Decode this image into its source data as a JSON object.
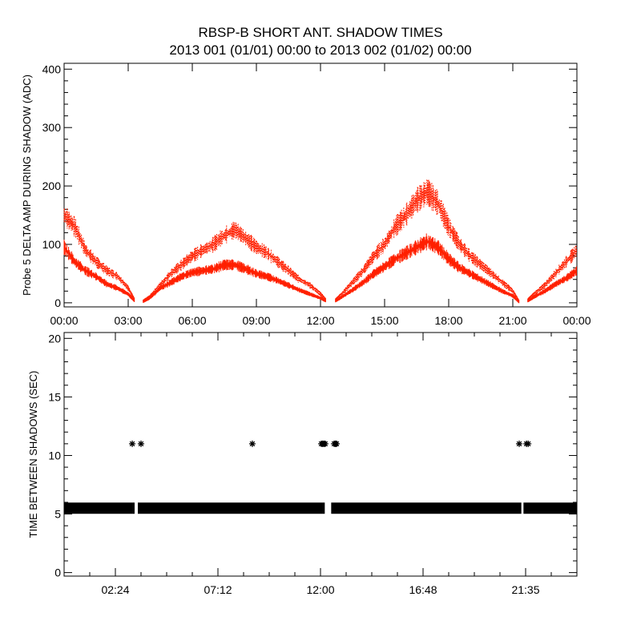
{
  "title": "RBSP-B SHORT ANT. SHADOW TIMES",
  "subtitle": "2013 001 (01/01) 00:00 to 2013 002 (01/02) 00:00",
  "chart_data": [
    {
      "type": "scatter",
      "ylabel": "Probe 5 DELTA AMP DURING SHADOW (ADC)",
      "xlabel": "",
      "x_unit": "hours",
      "xlim": [
        0,
        24
      ],
      "ylim": [
        -7,
        410
      ],
      "xticks": [
        0,
        3,
        6,
        9,
        12,
        15,
        18,
        21,
        24
      ],
      "xtick_labels": [
        "00:00",
        "03:00",
        "06:00",
        "09:00",
        "12:00",
        "15:00",
        "18:00",
        "21:00",
        "00:00"
      ],
      "yticks": [
        0,
        100,
        200,
        300,
        400
      ],
      "ytick_labels": [
        "0",
        "100",
        "200",
        "300",
        "400"
      ],
      "grid": false,
      "color": "#ff2000",
      "series": [
        {
          "x": [
            0,
            0.5,
            1,
            1.5,
            2,
            2.5,
            3,
            3.3,
            null,
            3.7,
            4,
            4.5,
            5,
            5.5,
            6,
            6.5,
            7,
            7.5,
            8,
            8.5,
            9,
            9.5,
            10,
            10.5,
            11,
            11.5,
            12,
            12.25,
            null,
            12.7,
            13,
            13.5,
            14,
            14.5,
            15,
            15.5,
            16,
            16.5,
            17,
            17.5,
            18,
            18.5,
            19,
            19.5,
            20,
            20.5,
            21,
            21.3,
            null,
            21.7,
            22,
            22.5,
            23,
            23.5,
            24
          ],
          "y": [
            150,
            130,
            90,
            70,
            55,
            45,
            25,
            5,
            null,
            3,
            10,
            30,
            50,
            65,
            80,
            90,
            100,
            115,
            125,
            110,
            95,
            85,
            70,
            55,
            40,
            30,
            15,
            5,
            null,
            5,
            15,
            35,
            55,
            80,
            100,
            130,
            150,
            175,
            190,
            170,
            130,
            100,
            80,
            65,
            50,
            35,
            20,
            2,
            null,
            5,
            15,
            30,
            50,
            70,
            90
          ]
        },
        {
          "x": [
            0,
            0.5,
            1,
            1.5,
            2,
            2.5,
            3,
            3.3,
            null,
            3.7,
            4,
            4.5,
            5,
            5.5,
            6,
            6.5,
            7,
            7.5,
            8,
            8.5,
            9,
            9.5,
            10,
            10.5,
            11,
            11.5,
            12,
            12.25,
            null,
            12.7,
            13,
            13.5,
            14,
            14.5,
            15,
            15.5,
            16,
            16.5,
            17,
            17.5,
            18,
            18.5,
            19,
            19.5,
            20,
            20.5,
            21,
            21.3,
            null,
            21.7,
            22,
            22.5,
            23,
            23.5,
            24
          ],
          "y": [
            95,
            70,
            55,
            45,
            32,
            25,
            15,
            3,
            null,
            2,
            8,
            25,
            35,
            45,
            52,
            55,
            58,
            65,
            65,
            58,
            50,
            45,
            38,
            30,
            22,
            15,
            8,
            3,
            null,
            3,
            10,
            22,
            35,
            50,
            62,
            75,
            85,
            95,
            105,
            95,
            75,
            60,
            50,
            40,
            30,
            20,
            12,
            1,
            null,
            3,
            10,
            20,
            32,
            42,
            55
          ]
        }
      ]
    },
    {
      "type": "scatter",
      "ylabel": "TIME BETWEEN SHADOWS (SEC)",
      "xlabel": "",
      "x_unit": "hours",
      "xlim": [
        0,
        24
      ],
      "ylim": [
        -0.3,
        20.5
      ],
      "xticks": [
        2.4,
        7.2,
        12,
        16.8,
        21.6
      ],
      "xtick_labels": [
        "02:24",
        "07:12",
        "12:00",
        "16:48",
        "21:35"
      ],
      "yticks": [
        0,
        5,
        10,
        15,
        20
      ],
      "ytick_labels": [
        "0",
        "5",
        "10",
        "15",
        "20"
      ],
      "grid": false,
      "color": "#000000",
      "marker": "asterisk",
      "continuous_segments": [
        {
          "x_start": 0,
          "x_end": 3.3,
          "y": 5.5
        },
        {
          "x_start": 3.45,
          "x_end": 12.2,
          "y": 5.5
        },
        {
          "x_start": 12.5,
          "x_end": 21.4,
          "y": 5.5
        },
        {
          "x_start": 21.5,
          "x_end": 24,
          "y": 5.5
        }
      ],
      "points": {
        "x": [
          3.19,
          3.6,
          8.81,
          12.04,
          12.1,
          12.16,
          12.22,
          12.64,
          12.7,
          12.75,
          21.3,
          21.64,
          21.72
        ],
        "y": [
          11,
          11,
          11,
          11,
          11,
          11,
          11,
          11,
          11,
          11,
          11,
          11,
          11
        ]
      }
    }
  ]
}
